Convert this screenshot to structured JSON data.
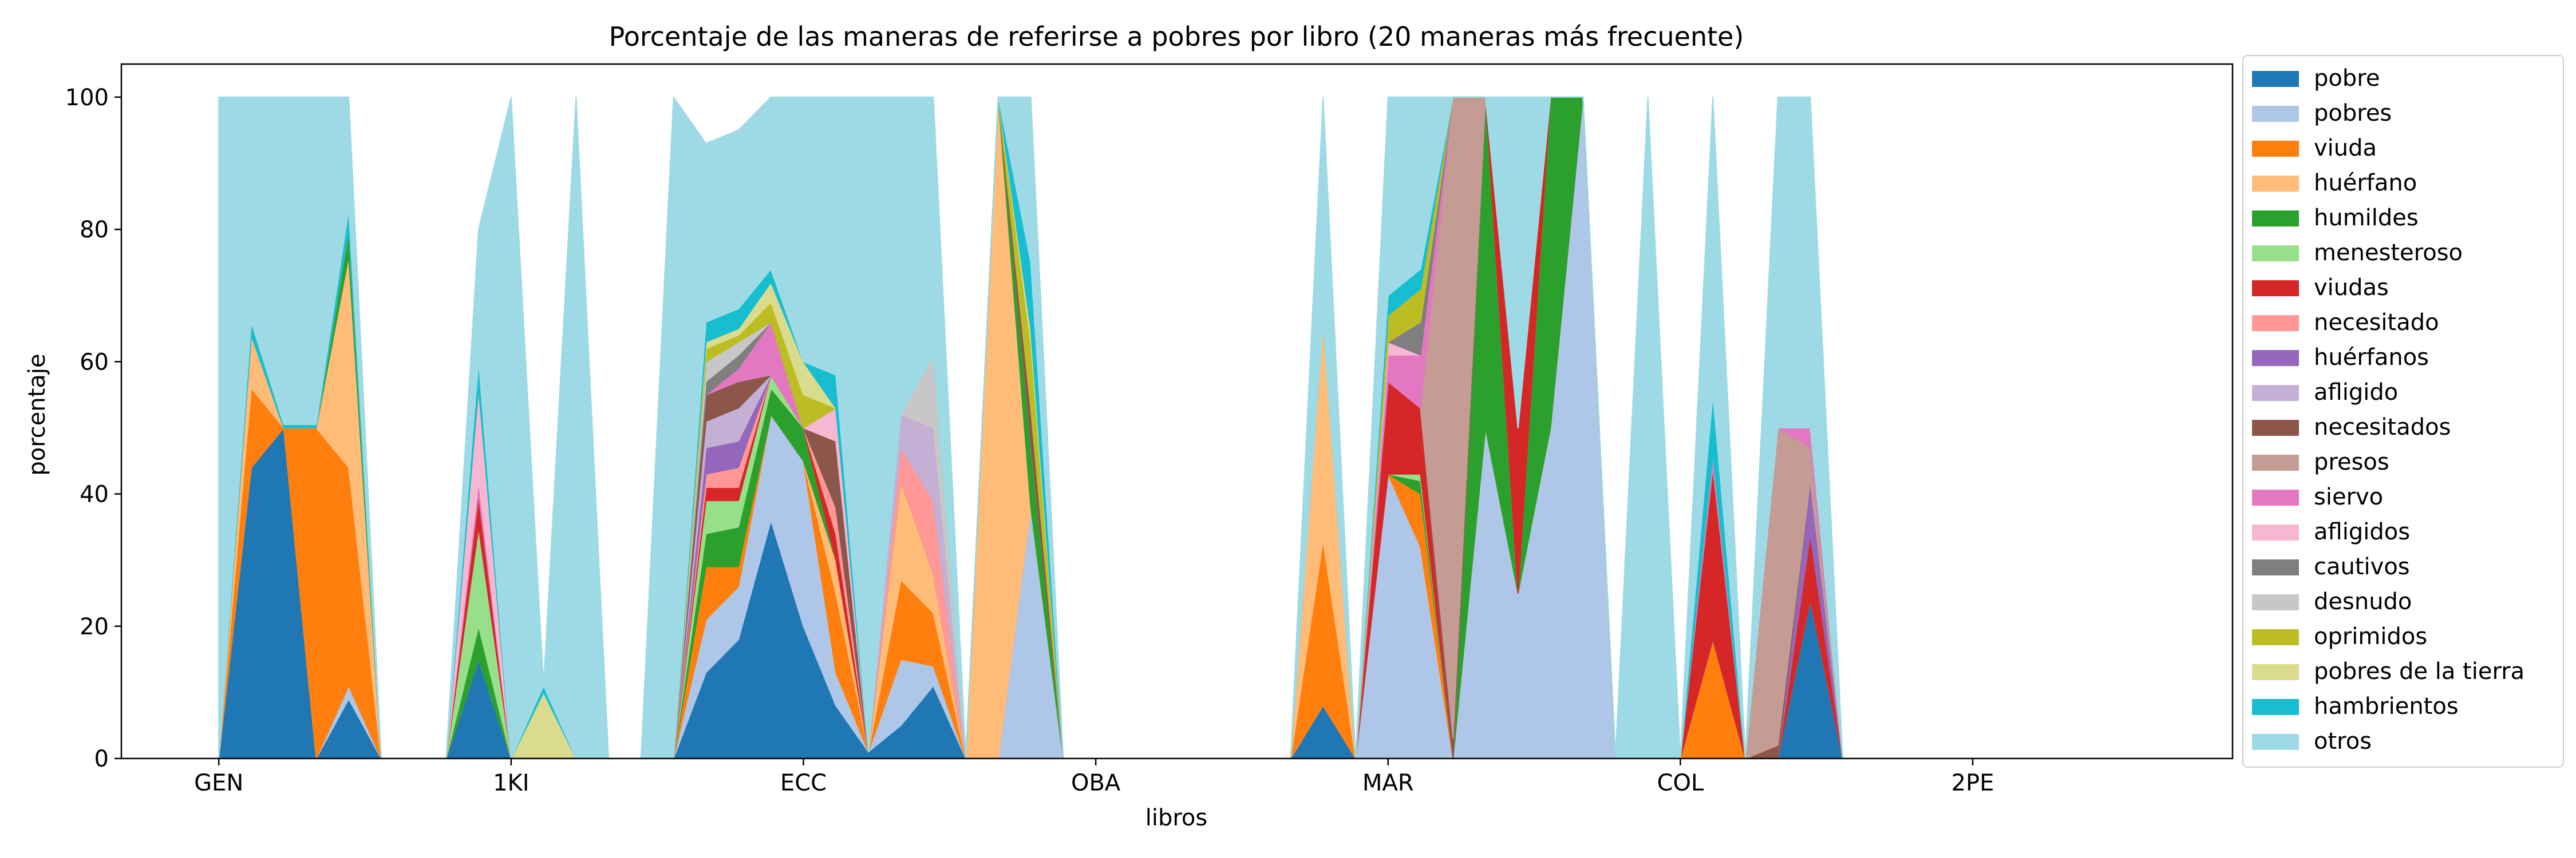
{
  "chart_data": {
    "type": "area",
    "title": "Porcentaje de las maneras de referirse a pobres por libro  (20 maneras más frecuente)",
    "xlabel": "libros",
    "ylabel": "porcentaje",
    "ylim": [
      0,
      105
    ],
    "yticks": [
      0,
      20,
      40,
      60,
      80,
      100
    ],
    "xtick_labels": [
      "GEN",
      "1KI",
      "ECC",
      "OBA",
      "MAR",
      "COL",
      "2PE"
    ],
    "grid": false,
    "legend_position": "outside-right",
    "series": [
      {
        "name": "pobre",
        "color": "#1f77b4"
      },
      {
        "name": "pobres",
        "color": "#aec7e8"
      },
      {
        "name": "viuda",
        "color": "#ff7f0e"
      },
      {
        "name": "huérfano",
        "color": "#ffbb78"
      },
      {
        "name": "humildes",
        "color": "#2ca02c"
      },
      {
        "name": "menesteroso",
        "color": "#98df8a"
      },
      {
        "name": "viudas",
        "color": "#d62728"
      },
      {
        "name": "necesitado",
        "color": "#ff9896"
      },
      {
        "name": "huérfanos",
        "color": "#9467bd"
      },
      {
        "name": "afligido",
        "color": "#c5b0d5"
      },
      {
        "name": "necesitados",
        "color": "#8c564b"
      },
      {
        "name": "presos",
        "color": "#c49c94"
      },
      {
        "name": "siervo",
        "color": "#e377c2"
      },
      {
        "name": "afligidos",
        "color": "#f7b6d2"
      },
      {
        "name": "cautivos",
        "color": "#7f7f7f"
      },
      {
        "name": "desnudo",
        "color": "#c7c7c7"
      },
      {
        "name": "oprimidos",
        "color": "#bcbd22"
      },
      {
        "name": "pobres de la tierra",
        "color": "#dbdb8d"
      },
      {
        "name": "hambrientos",
        "color": "#17becf"
      },
      {
        "name": "otros",
        "color": "#9edae5"
      }
    ],
    "books": [
      {
        "x": 0,
        "v": {
          "otros": 100
        }
      },
      {
        "x": 1,
        "v": {
          "pobre": 44,
          "viuda": 12,
          "huérfano": 8,
          "hambrientos": 2,
          "otros": 34
        }
      },
      {
        "x": 2,
        "v": {
          "pobre": 50,
          "hambrientos": 0.5,
          "otros": 49.5
        }
      },
      {
        "x": 3,
        "v": {
          "viuda": 50,
          "hambrientos": 0.5,
          "otros": 49.5
        }
      },
      {
        "x": 4,
        "v": {
          "pobre": 9,
          "pobres": 2,
          "viuda": 33,
          "huérfano": 32,
          "humildes": 4,
          "hambrientos": 3,
          "otros": 17
        }
      },
      {
        "x": 5,
        "v": {}
      },
      {
        "x": 6,
        "v": {}
      },
      {
        "x": 7,
        "v": {}
      },
      {
        "x": 8,
        "v": {
          "pobre": 15,
          "humildes": 5,
          "menesteroso": 15,
          "viudas": 5,
          "siervo": 2,
          "afligidos": 14,
          "hambrientos": 4,
          "otros": 20
        }
      },
      {
        "x": 9,
        "v": {
          "otros": 100
        }
      },
      {
        "x": 10,
        "v": {
          "pobres de la tierra": 10,
          "hambrientos": 1
        }
      },
      {
        "x": 11,
        "v": {
          "otros": 100
        }
      },
      {
        "x": 12,
        "v": {}
      },
      {
        "x": 13,
        "v": {}
      },
      {
        "x": 14,
        "v": {
          "otros": 100
        }
      },
      {
        "x": 15,
        "v": {
          "pobre": 13,
          "pobres": 8,
          "viuda": 8,
          "humildes": 5,
          "menesteroso": 5,
          "viudas": 2,
          "necesitado": 2,
          "huérfanos": 4,
          "afligido": 4,
          "necesitados": 4,
          "cautivos": 2,
          "desnudo": 3,
          "oprimidos": 2,
          "pobres de la tierra": 1,
          "hambrientos": 3,
          "otros": 27
        }
      },
      {
        "x": 16,
        "v": {
          "pobre": 18,
          "pobres": 8,
          "viuda": 3,
          "humildes": 6,
          "menesteroso": 4,
          "viudas": 2,
          "necesitado": 3,
          "huérfanos": 4,
          "afligido": 5,
          "necesitados": 4,
          "siervo": 2,
          "cautivos": 2,
          "desnudo": 2,
          "oprimidos": 1,
          "pobres de la tierra": 1,
          "hambrientos": 3,
          "otros": 27
        }
      },
      {
        "x": 17,
        "v": {
          "pobre": 36,
          "pobres": 16,
          "humildes": 4,
          "menesteroso": 2,
          "siervo": 8,
          "oprimidos": 3,
          "pobres de la tierra": 3,
          "hambrientos": 2,
          "otros": 26
        }
      },
      {
        "x": 18,
        "v": {
          "pobre": 20,
          "pobres": 25,
          "humildes": 5,
          "oprimidos": 5,
          "pobres de la tierra": 5,
          "otros": 40
        }
      },
      {
        "x": 19,
        "v": {
          "pobre": 8,
          "pobres": 5,
          "viuda": 12,
          "huérfano": 5,
          "viudas": 4,
          "necesitado": 4,
          "necesitados": 10,
          "afligidos": 5,
          "hambrientos": 5,
          "otros": 42
        }
      },
      {
        "x": 20,
        "v": {
          "pobre": 1,
          "otros": 99
        }
      },
      {
        "x": 21,
        "v": {
          "pobre": 5,
          "pobres": 10,
          "viuda": 12,
          "huérfano": 15,
          "necesitado": 5,
          "afligido": 5,
          "otros": 48
        }
      },
      {
        "x": 22,
        "v": {
          "pobre": 11,
          "pobres": 3,
          "viuda": 8,
          "huérfano": 6,
          "necesitado": 11,
          "afligido": 11,
          "desnudo": 11,
          "otros": 39
        }
      },
      {
        "x": 23,
        "v": {}
      },
      {
        "x": 24,
        "v": {
          "huérfano": 100
        }
      },
      {
        "x": 25,
        "v": {
          "pobres": 38,
          "humildes": 10,
          "necesitados": 5,
          "oprimidos": 10,
          "pobres de la tierra": 2,
          "hambrientos": 10,
          "otros": 25
        }
      },
      {
        "x": 26,
        "v": {}
      },
      {
        "x": 27,
        "v": {}
      },
      {
        "x": 28,
        "v": {}
      },
      {
        "x": 29,
        "v": {}
      },
      {
        "x": 30,
        "v": {}
      },
      {
        "x": 31,
        "v": {}
      },
      {
        "x": 32,
        "v": {}
      },
      {
        "x": 33,
        "v": {}
      },
      {
        "x": 34,
        "v": {
          "pobre": 8,
          "viuda": 25,
          "huérfano": 33,
          "otros": 34
        }
      },
      {
        "x": 35,
        "v": {}
      },
      {
        "x": 36,
        "v": {
          "pobres": 43,
          "viudas": 14,
          "siervo": 4,
          "afligidos": 2,
          "oprimidos": 4,
          "hambrientos": 3,
          "otros": 30
        }
      },
      {
        "x": 37,
        "v": {
          "pobres": 32,
          "viuda": 8,
          "humildes": 2,
          "menesteroso": 1,
          "viudas": 10,
          "siervo": 8,
          "cautivos": 5,
          "oprimidos": 5,
          "hambrientos": 3,
          "otros": 26
        }
      },
      {
        "x": 38,
        "v": {
          "necesitados": 3,
          "presos": 97
        }
      },
      {
        "x": 39,
        "v": {
          "pobres": 50,
          "humildes": 50
        }
      },
      {
        "x": 40,
        "v": {
          "pobres": 25,
          "viudas": 25,
          "otros": 50
        }
      },
      {
        "x": 41,
        "v": {
          "pobres": 50,
          "humildes": 50
        }
      },
      {
        "x": 42,
        "v": {
          "pobres": 100
        }
      },
      {
        "x": 43,
        "v": {}
      },
      {
        "x": 44,
        "v": {
          "otros": 100
        }
      },
      {
        "x": 45,
        "v": {}
      },
      {
        "x": 46,
        "v": {
          "viuda": 18,
          "viudas": 26,
          "siervo": 2,
          "hambrientos": 9,
          "otros": 45
        }
      },
      {
        "x": 47,
        "v": {}
      },
      {
        "x": 48,
        "v": {
          "necesitados": 2,
          "presos": 48,
          "otros": 50
        }
      },
      {
        "x": 49,
        "v": {
          "pobre": 24,
          "viudas": 10,
          "siervo": 3,
          "huérfanos": 8,
          "presos": 5,
          "otros": 50
        }
      },
      {
        "x": 50,
        "v": {}
      },
      {
        "x": 51,
        "v": {}
      },
      {
        "x": 52,
        "v": {}
      },
      {
        "x": 53,
        "v": {}
      },
      {
        "x": 54,
        "v": {}
      },
      {
        "x": 55,
        "v": {}
      },
      {
        "x": 56,
        "v": {}
      },
      {
        "x": 57,
        "v": {}
      },
      {
        "x": 58,
        "v": {}
      },
      {
        "x": 59,
        "v": {}
      },
      {
        "x": 60,
        "v": {}
      }
    ]
  }
}
